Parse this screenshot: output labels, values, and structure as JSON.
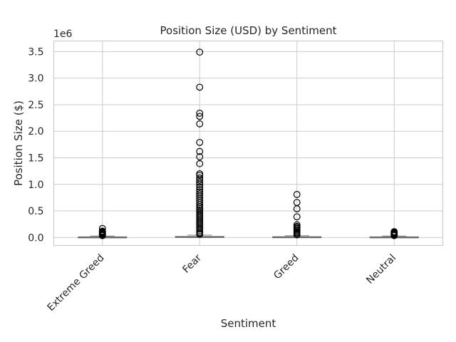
{
  "chart_data": {
    "type": "box",
    "title": "Position Size (USD) by Sentiment",
    "xlabel": "Sentiment",
    "ylabel": "Position Size ($)",
    "y_offset_label": "1e6",
    "y_scale_factor": 1000000,
    "ylim": [
      -0.15,
      3.7
    ],
    "yticks": [
      0.0,
      0.5,
      1.0,
      1.5,
      2.0,
      2.5,
      3.0,
      3.5
    ],
    "ytick_labels": [
      "0.0",
      "0.5",
      "1.0",
      "1.5",
      "2.0",
      "2.5",
      "3.0",
      "3.5"
    ],
    "grid": true,
    "categories": [
      "Extreme Greed",
      "Fear",
      "Greed",
      "Neutral"
    ],
    "boxes": [
      {
        "name": "Extreme Greed",
        "whisker_low": 0.0,
        "q1": 0.002,
        "median": 0.005,
        "q3": 0.012,
        "whisker_high": 0.028,
        "outliers": [
          0.17,
          0.12,
          0.11,
          0.1,
          0.09,
          0.08,
          0.07,
          0.06,
          0.05,
          0.04,
          0.035
        ]
      },
      {
        "name": "Fear",
        "whisker_low": 0.0,
        "q1": 0.003,
        "median": 0.008,
        "q3": 0.02,
        "whisker_high": 0.045,
        "outliers": [
          3.49,
          2.83,
          2.34,
          2.28,
          2.14,
          1.79,
          1.62,
          1.52,
          1.39,
          1.2,
          1.17,
          1.12,
          1.08,
          1.04,
          1.0,
          0.95,
          0.9,
          0.86,
          0.82,
          0.78,
          0.74,
          0.7,
          0.66,
          0.62,
          0.58,
          0.55,
          0.52,
          0.49,
          0.46,
          0.43,
          0.4,
          0.37,
          0.34,
          0.31,
          0.28,
          0.25,
          0.22,
          0.19,
          0.16,
          0.13,
          0.1,
          0.08,
          0.06
        ]
      },
      {
        "name": "Greed",
        "whisker_low": 0.0,
        "q1": 0.002,
        "median": 0.006,
        "q3": 0.015,
        "whisker_high": 0.035,
        "outliers": [
          0.81,
          0.66,
          0.54,
          0.39,
          0.24,
          0.21,
          0.19,
          0.17,
          0.15,
          0.13,
          0.11,
          0.09,
          0.07,
          0.05
        ]
      },
      {
        "name": "Neutral",
        "whisker_low": 0.0,
        "q1": 0.002,
        "median": 0.005,
        "q3": 0.012,
        "whisker_high": 0.028,
        "outliers": [
          0.11,
          0.1,
          0.09,
          0.08,
          0.07,
          0.06,
          0.05,
          0.04,
          0.035
        ]
      }
    ]
  }
}
